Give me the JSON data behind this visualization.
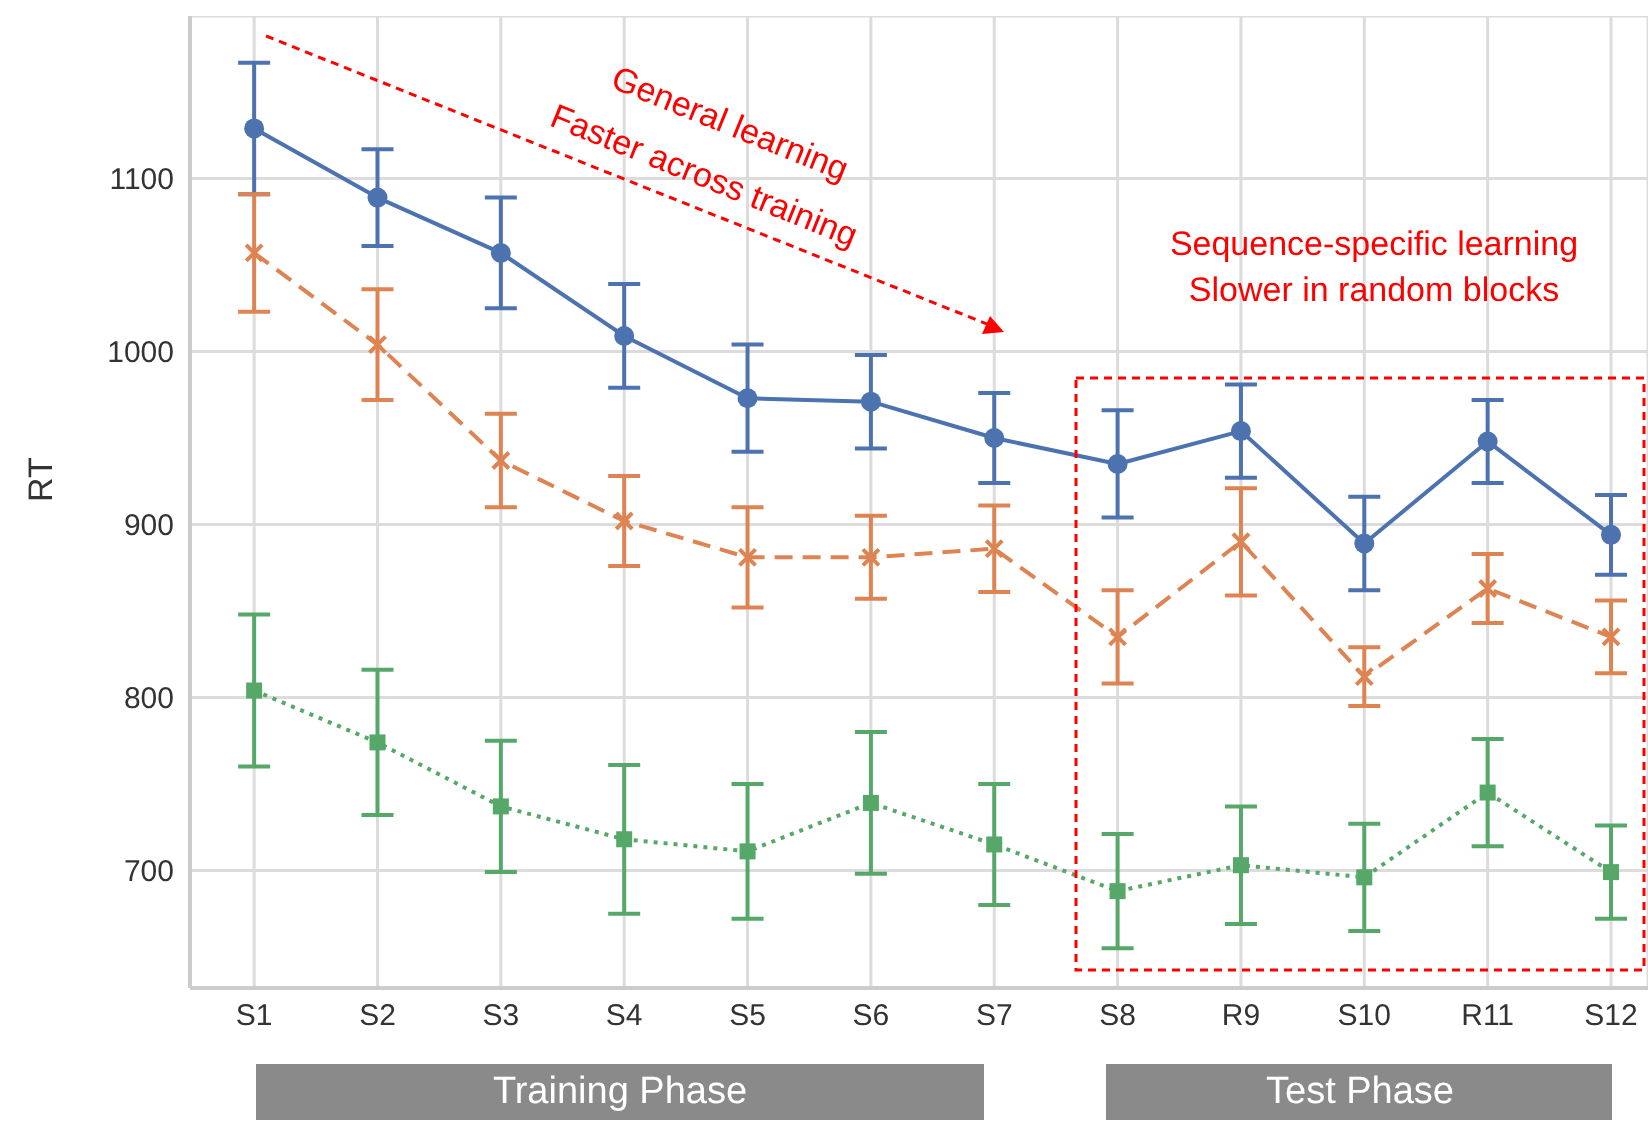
{
  "chart_data": {
    "type": "line",
    "ylabel": "RT",
    "categories": [
      "S1",
      "S2",
      "S3",
      "S4",
      "S5",
      "S6",
      "S7",
      "S8",
      "R9",
      "S10",
      "R11",
      "S12"
    ],
    "series": [
      {
        "color": "#4c72b0",
        "marker": "circle",
        "line_style": "solid",
        "values": [
          1129,
          1089,
          1057,
          1009,
          973,
          971,
          950,
          935,
          954,
          889,
          948,
          894
        ],
        "errors": [
          38,
          28,
          32,
          30,
          31,
          27,
          26,
          31,
          27,
          27,
          24,
          23
        ]
      },
      {
        "color": "#dd8452",
        "marker": "cross",
        "line_style": "dashed",
        "values": [
          1057,
          1004,
          937,
          902,
          881,
          881,
          886,
          835,
          890,
          812,
          863,
          835
        ],
        "errors": [
          34,
          32,
          27,
          26,
          29,
          24,
          25,
          27,
          31,
          17,
          20,
          21
        ]
      },
      {
        "color": "#55a868",
        "marker": "square",
        "line_style": "dotted",
        "values": [
          804,
          774,
          737,
          718,
          711,
          739,
          715,
          688,
          703,
          696,
          745,
          699
        ],
        "errors": [
          44,
          42,
          38,
          43,
          39,
          41,
          35,
          33,
          34,
          31,
          31,
          27
        ]
      }
    ],
    "ylim": [
      632,
      1194
    ],
    "yticks": [
      700,
      800,
      900,
      1000,
      1100
    ],
    "grid": true,
    "legend": false,
    "annotations": [
      "General learning",
      "Faster across training",
      "Sequence-specific learning",
      "Slower in random blocks",
      "Training Phase",
      "Test Phase"
    ]
  }
}
